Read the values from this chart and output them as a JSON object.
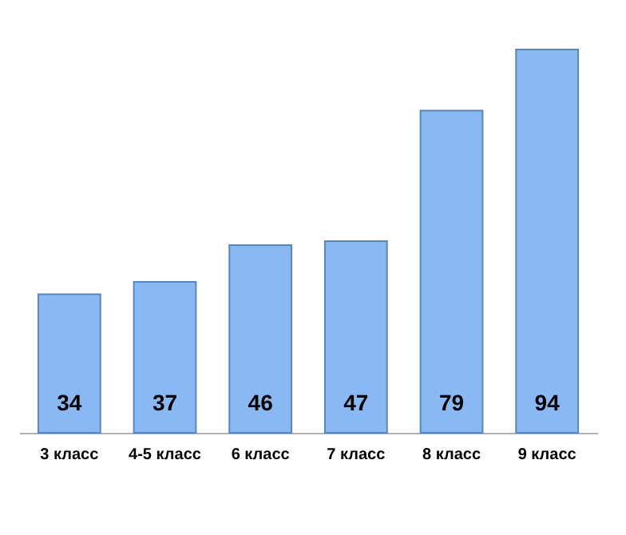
{
  "chart_data": {
    "type": "bar",
    "categories": [
      "3 класс",
      "4-5 класс",
      "6 класс",
      "7 класс",
      "8 класс",
      "9 класс"
    ],
    "values": [
      34,
      37,
      46,
      47,
      79,
      94
    ],
    "color": "#8ab8f2",
    "data_labels": true
  }
}
